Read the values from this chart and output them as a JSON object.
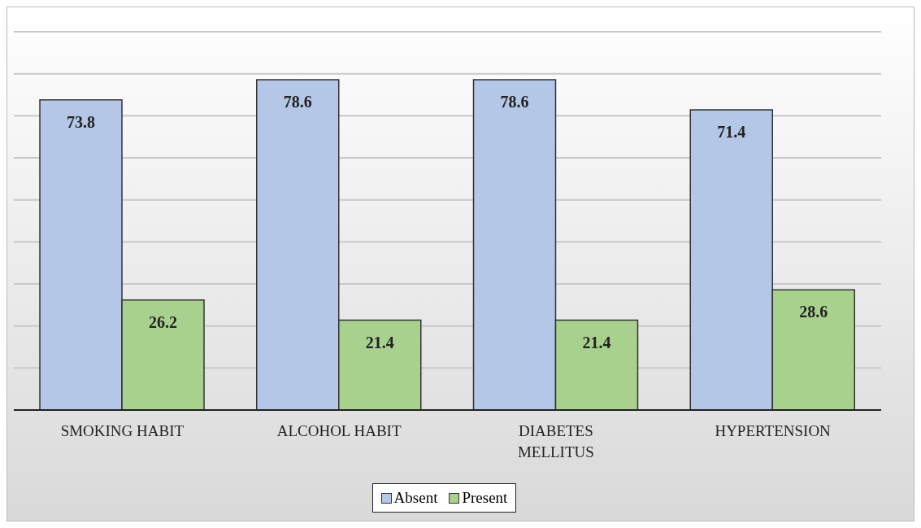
{
  "chart_data": {
    "type": "bar",
    "categories": [
      "SMOKING HABIT",
      "ALCOHOL  HABIT",
      "DIABETES MELLITUS",
      "HYPERTENSION"
    ],
    "series": [
      {
        "name": "Absent",
        "color": "#b4c7e7",
        "values": [
          73.8,
          78.6,
          78.6,
          71.4
        ]
      },
      {
        "name": "Present",
        "color": "#a9d18e",
        "values": [
          26.2,
          21.4,
          21.4,
          28.6
        ]
      }
    ],
    "ylim": [
      0,
      90
    ],
    "tick_labels": "x",
    "grid": "y",
    "data_labels": true,
    "legend": "bottom"
  }
}
